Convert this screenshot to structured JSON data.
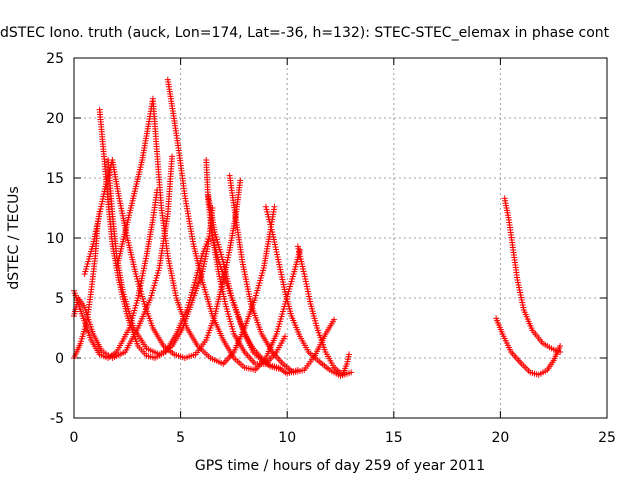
{
  "chart_data": {
    "type": "scatter",
    "title": "dSTEC Iono. truth (auck, Lon=174, Lat=-36, h=132): STEC-STEC_elemax in phase cont",
    "xlabel": "GPS time / hours of day 259 of year 2011",
    "ylabel": "dSTEC  / TECUs",
    "xlim": [
      0,
      25
    ],
    "ylim": [
      -5,
      25
    ],
    "xticks": [
      0,
      5,
      10,
      15,
      20,
      25
    ],
    "yticks": [
      -5,
      0,
      5,
      10,
      15,
      20,
      25
    ],
    "grid": true,
    "marker": "+",
    "series": [
      {
        "color": "#ff0000",
        "arcs": [
          [
            [
              0.0,
              0.0
            ],
            [
              0.3,
              1.2
            ],
            [
              0.6,
              3.0
            ],
            [
              0.8,
              5.5
            ],
            [
              1.0,
              8.5
            ],
            [
              1.1,
              11.0
            ],
            [
              1.2,
              12.2
            ]
          ],
          [
            [
              0.0,
              5.6
            ],
            [
              0.4,
              3.5
            ],
            [
              0.8,
              1.5
            ],
            [
              1.2,
              0.3
            ],
            [
              1.6,
              0.0
            ],
            [
              2.0,
              0.5
            ],
            [
              2.6,
              2.5
            ],
            [
              3.0,
              5.0
            ],
            [
              3.4,
              8.5
            ],
            [
              3.7,
              11.5
            ],
            [
              3.9,
              14.0
            ]
          ],
          [
            [
              0.0,
              3.5
            ],
            [
              0.2,
              5.0
            ],
            [
              0.5,
              4.2
            ],
            [
              0.9,
              2.0
            ],
            [
              1.3,
              0.6
            ],
            [
              1.8,
              0.0
            ],
            [
              2.4,
              0.5
            ],
            [
              3.0,
              2.5
            ],
            [
              3.6,
              5.0
            ],
            [
              4.0,
              7.5
            ],
            [
              4.4,
              12.0
            ],
            [
              4.6,
              16.8
            ]
          ],
          [
            [
              1.2,
              20.7
            ],
            [
              1.4,
              17.0
            ],
            [
              1.6,
              13.0
            ],
            [
              1.8,
              9.5
            ],
            [
              2.1,
              6.5
            ],
            [
              2.5,
              3.5
            ],
            [
              3.0,
              1.0
            ],
            [
              3.4,
              0.2
            ],
            [
              3.8,
              0.0
            ],
            [
              4.3,
              0.5
            ],
            [
              4.8,
              2.0
            ],
            [
              5.3,
              4.0
            ],
            [
              5.7,
              6.5
            ],
            [
              6.0,
              8.5
            ],
            [
              6.3,
              9.9
            ]
          ],
          [
            [
              0.5,
              7.0
            ],
            [
              0.9,
              9.5
            ],
            [
              1.2,
              12.0
            ],
            [
              1.5,
              14.5
            ],
            [
              1.8,
              16.5
            ],
            [
              2.1,
              13.5
            ],
            [
              2.5,
              10.0
            ],
            [
              2.9,
              7.0
            ],
            [
              3.3,
              4.5
            ],
            [
              3.7,
              2.5
            ],
            [
              4.2,
              1.0
            ],
            [
              4.7,
              0.3
            ],
            [
              5.2,
              0.0
            ],
            [
              5.7,
              0.3
            ],
            [
              6.2,
              1.5
            ],
            [
              6.6,
              3.5
            ],
            [
              7.0,
              6.5
            ],
            [
              7.3,
              9.0
            ],
            [
              7.6,
              12.0
            ],
            [
              7.8,
              14.8
            ]
          ],
          [
            [
              1.6,
              16.5
            ],
            [
              1.8,
              12.0
            ],
            [
              2.0,
              8.5
            ],
            [
              2.3,
              5.5
            ],
            [
              2.8,
              2.5
            ],
            [
              3.4,
              0.8
            ],
            [
              4.0,
              0.3
            ],
            [
              4.6,
              1.0
            ],
            [
              5.1,
              2.5
            ],
            [
              5.6,
              5.0
            ],
            [
              6.0,
              7.0
            ],
            [
              6.3,
              9.5
            ],
            [
              6.5,
              12.5
            ]
          ],
          [
            [
              2.0,
              7.5
            ],
            [
              2.4,
              10.5
            ],
            [
              2.8,
              13.5
            ],
            [
              3.2,
              16.5
            ],
            [
              3.5,
              19.5
            ],
            [
              3.7,
              21.6
            ],
            [
              3.9,
              17.0
            ],
            [
              4.1,
              12.5
            ],
            [
              4.4,
              8.5
            ],
            [
              4.8,
              5.0
            ],
            [
              5.3,
              2.5
            ],
            [
              5.8,
              1.0
            ],
            [
              6.4,
              0.0
            ],
            [
              7.0,
              -0.5
            ],
            [
              7.5,
              0.5
            ],
            [
              8.0,
              2.5
            ],
            [
              8.5,
              5.0
            ],
            [
              8.9,
              7.5
            ],
            [
              9.2,
              10.5
            ],
            [
              9.4,
              12.6
            ]
          ],
          [
            [
              4.4,
              23.2
            ],
            [
              4.6,
              21.0
            ],
            [
              4.9,
              17.5
            ],
            [
              5.2,
              13.5
            ],
            [
              5.6,
              9.5
            ],
            [
              6.0,
              6.5
            ],
            [
              6.5,
              3.5
            ],
            [
              7.0,
              1.5
            ],
            [
              7.5,
              0.0
            ],
            [
              8.0,
              -0.8
            ],
            [
              8.5,
              -1.0
            ],
            [
              9.0,
              0.0
            ],
            [
              9.5,
              2.0
            ],
            [
              9.9,
              4.5
            ],
            [
              10.3,
              7.0
            ],
            [
              10.6,
              9.0
            ]
          ],
          [
            [
              6.2,
              16.5
            ],
            [
              6.3,
              13.0
            ],
            [
              6.5,
              10.0
            ],
            [
              6.8,
              7.0
            ],
            [
              7.1,
              4.5
            ],
            [
              7.5,
              2.0
            ],
            [
              8.0,
              0.5
            ],
            [
              8.5,
              -0.5
            ],
            [
              9.0,
              -0.5
            ],
            [
              9.5,
              0.5
            ],
            [
              9.9,
              1.8
            ]
          ],
          [
            [
              6.3,
              13.5
            ],
            [
              6.6,
              10.5
            ],
            [
              7.0,
              8.0
            ],
            [
              7.4,
              5.0
            ],
            [
              7.9,
              2.5
            ],
            [
              8.4,
              0.5
            ],
            [
              9.0,
              -0.5
            ],
            [
              9.6,
              -0.8
            ],
            [
              10.0,
              -1.3
            ],
            [
              10.5,
              -1.0
            ]
          ],
          [
            [
              6.5,
              10.0
            ],
            [
              6.8,
              8.0
            ],
            [
              7.2,
              6.0
            ],
            [
              7.6,
              4.0
            ],
            [
              8.0,
              2.0
            ],
            [
              8.4,
              0.8
            ],
            [
              8.8,
              0.0
            ],
            [
              9.2,
              -0.7
            ],
            [
              9.6,
              -0.9
            ]
          ],
          [
            [
              7.3,
              15.2
            ],
            [
              7.6,
              11.5
            ],
            [
              7.9,
              8.0
            ],
            [
              8.3,
              4.5
            ],
            [
              8.8,
              2.0
            ],
            [
              9.3,
              0.5
            ],
            [
              9.8,
              -0.5
            ],
            [
              10.3,
              -1.2
            ],
            [
              10.8,
              -1.0
            ],
            [
              11.3,
              0.2
            ],
            [
              11.8,
              2.0
            ],
            [
              12.2,
              3.2
            ]
          ],
          [
            [
              9.0,
              12.6
            ],
            [
              9.3,
              10.5
            ],
            [
              9.6,
              8.0
            ],
            [
              9.9,
              5.5
            ],
            [
              10.2,
              3.5
            ],
            [
              10.6,
              1.8
            ],
            [
              11.0,
              0.5
            ],
            [
              11.5,
              -0.3
            ],
            [
              12.0,
              -1.0
            ],
            [
              12.5,
              -1.5
            ],
            [
              13.0,
              -1.2
            ]
          ],
          [
            [
              10.5,
              9.3
            ],
            [
              10.8,
              7.0
            ],
            [
              11.1,
              4.5
            ],
            [
              11.4,
              2.5
            ],
            [
              11.8,
              0.5
            ],
            [
              12.2,
              -0.8
            ],
            [
              12.6,
              -1.4
            ],
            [
              12.8,
              -0.5
            ],
            [
              12.9,
              0.3
            ]
          ],
          [
            [
              20.2,
              13.3
            ],
            [
              20.4,
              11.5
            ],
            [
              20.6,
              9.0
            ],
            [
              20.8,
              6.5
            ],
            [
              21.1,
              4.0
            ],
            [
              21.5,
              2.3
            ],
            [
              22.0,
              1.2
            ],
            [
              22.5,
              0.7
            ],
            [
              22.8,
              0.5
            ]
          ],
          [
            [
              19.8,
              3.3
            ],
            [
              20.1,
              2.0
            ],
            [
              20.5,
              0.5
            ],
            [
              21.0,
              -0.5
            ],
            [
              21.4,
              -1.2
            ],
            [
              21.8,
              -1.4
            ],
            [
              22.2,
              -1.0
            ],
            [
              22.5,
              -0.2
            ],
            [
              22.8,
              1.0
            ]
          ]
        ]
      }
    ]
  }
}
